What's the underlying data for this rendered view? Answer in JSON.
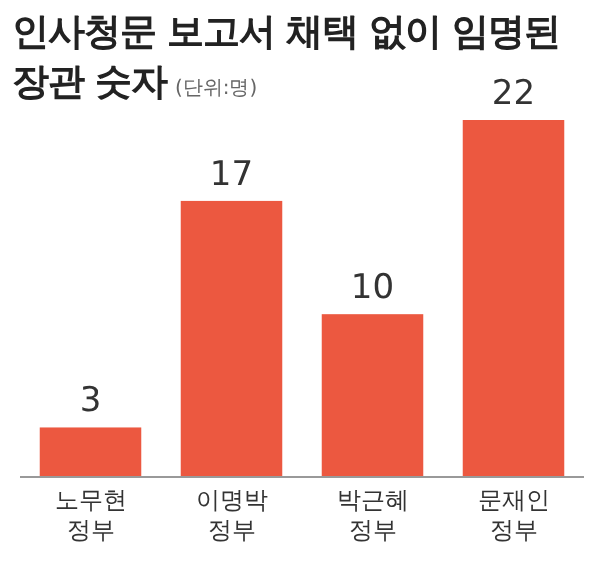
{
  "chart_data": {
    "type": "bar",
    "title": "인사청문 보고서 채택 없이 임명된 장관 숫자",
    "subtitle": "(단위:명)",
    "categories": [
      "노무현 정부",
      "이명박 정부",
      "박근혜 정부",
      "문재인 정부"
    ],
    "values": [
      3,
      17,
      10,
      22
    ],
    "color": "#ec5840",
    "data_labels": true
  }
}
